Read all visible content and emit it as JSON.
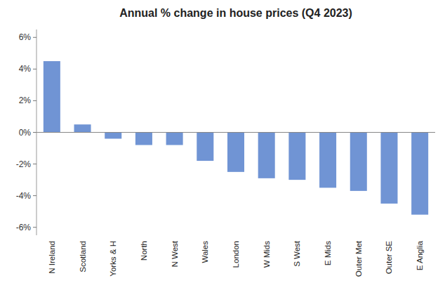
{
  "chart_data": {
    "type": "bar",
    "title": "Annual % change in house prices (Q4 2023)",
    "categories": [
      "N Ireland",
      "Scotland",
      "Yorks & H",
      "North",
      "N West",
      "Wales",
      "London",
      "W Mids",
      "S West",
      "E Mids",
      "Outer Met",
      "Outer SE",
      "E Anglia"
    ],
    "values": [
      4.5,
      0.5,
      -0.4,
      -0.8,
      -0.8,
      -1.8,
      -2.5,
      -2.9,
      -3.0,
      -3.5,
      -3.7,
      -4.5,
      -5.2
    ],
    "color": "#7094d4",
    "ylim": [
      -6.5,
      6.5
    ],
    "yticks": [
      {
        "value": -6,
        "label": "-6%"
      },
      {
        "value": -4,
        "label": "-4%"
      },
      {
        "value": -2,
        "label": "-2%"
      },
      {
        "value": 0,
        "label": "0%"
      },
      {
        "value": 2,
        "label": "2%"
      },
      {
        "value": 4,
        "label": "4%"
      },
      {
        "value": 6,
        "label": "6%"
      }
    ],
    "grid": false
  }
}
